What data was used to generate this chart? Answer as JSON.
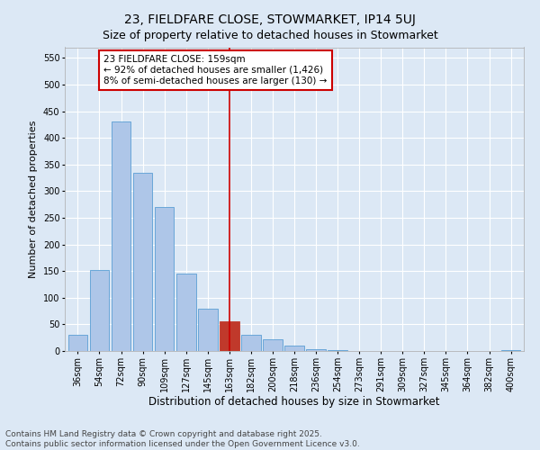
{
  "title": "23, FIELDFARE CLOSE, STOWMARKET, IP14 5UJ",
  "subtitle": "Size of property relative to detached houses in Stowmarket",
  "xlabel": "Distribution of detached houses by size in Stowmarket",
  "ylabel": "Number of detached properties",
  "categories": [
    "36sqm",
    "54sqm",
    "72sqm",
    "90sqm",
    "109sqm",
    "127sqm",
    "145sqm",
    "163sqm",
    "182sqm",
    "200sqm",
    "218sqm",
    "236sqm",
    "254sqm",
    "273sqm",
    "291sqm",
    "309sqm",
    "327sqm",
    "345sqm",
    "364sqm",
    "382sqm",
    "400sqm"
  ],
  "values": [
    30,
    152,
    430,
    335,
    270,
    145,
    80,
    55,
    30,
    22,
    10,
    4,
    2,
    0,
    0,
    0,
    0,
    0,
    0,
    0,
    2
  ],
  "bar_color": "#aec6e8",
  "bar_edge_color": "#5a9fd4",
  "highlight_index": 7,
  "highlight_bar_color": "#c0392b",
  "highlight_line_color": "#cc0000",
  "annotation_text": "23 FIELDFARE CLOSE: 159sqm\n← 92% of detached houses are smaller (1,426)\n8% of semi-detached houses are larger (130) →",
  "annotation_box_facecolor": "#ffffff",
  "annotation_box_edgecolor": "#cc0000",
  "footer_text": "Contains HM Land Registry data © Crown copyright and database right 2025.\nContains public sector information licensed under the Open Government Licence v3.0.",
  "background_color": "#dce8f5",
  "plot_background": "#dce8f5",
  "ylim": [
    0,
    570
  ],
  "yticks": [
    0,
    50,
    100,
    150,
    200,
    250,
    300,
    350,
    400,
    450,
    500,
    550
  ],
  "title_fontsize": 10,
  "xlabel_fontsize": 8.5,
  "ylabel_fontsize": 8,
  "tick_fontsize": 7,
  "annotation_fontsize": 7.5,
  "footer_fontsize": 6.5
}
